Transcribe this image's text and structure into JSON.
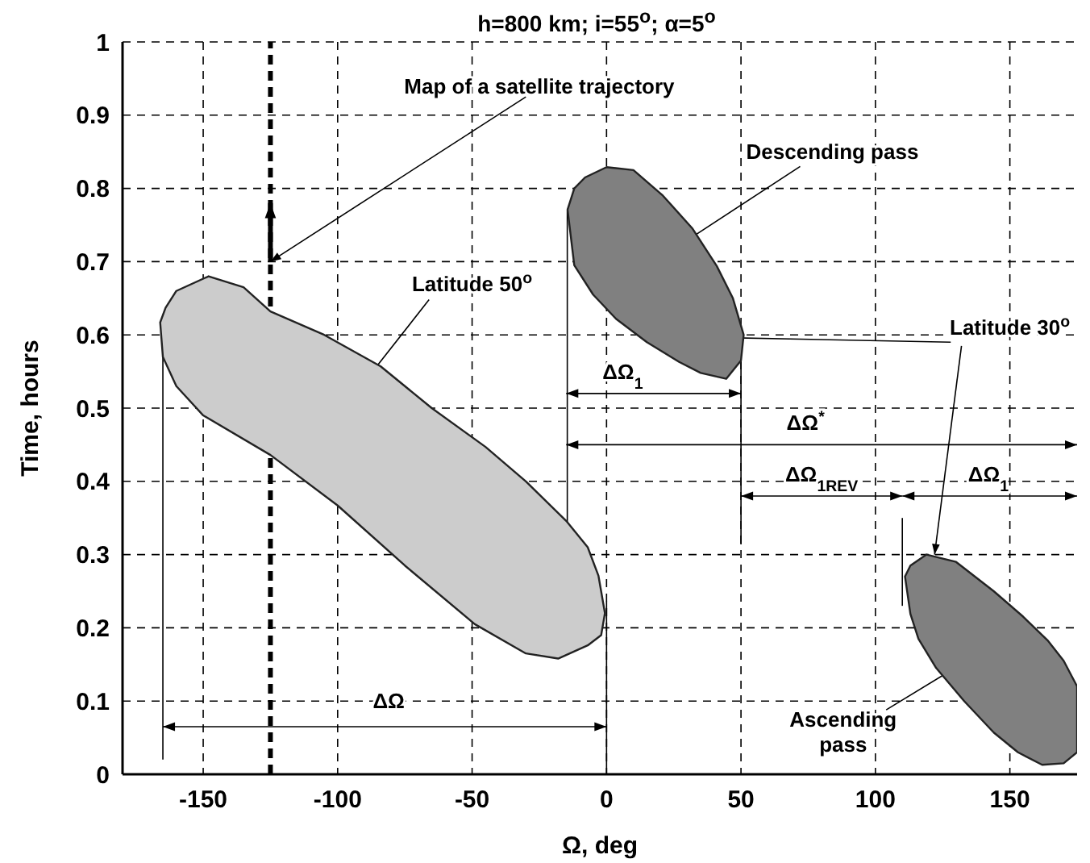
{
  "chart_data": {
    "type": "area",
    "title": "h=800 km; i=55$^{o}$; α=5$^{o}$",
    "xlabel": "Ω, deg",
    "ylabel": "Time, hours",
    "xlim": [
      -180,
      175
    ],
    "xticks": [
      -150,
      -100,
      -50,
      0,
      50,
      100,
      150
    ],
    "ylim": [
      0,
      1
    ],
    "yticks": [
      0,
      0.1,
      0.2,
      0.3,
      0.4,
      0.5,
      0.6,
      0.7,
      0.8,
      0.9,
      1
    ],
    "grid": true,
    "marker": "none",
    "series": [
      {
        "color": "#cccccc",
        "x": [
          -166,
          -164,
          -160,
          -148,
          -135,
          -125,
          -105,
          -84,
          -65,
          -45,
          -30,
          -15,
          -7,
          -3,
          -0.6,
          -2,
          -7,
          -18,
          -30,
          -49,
          -75,
          -100,
          -125,
          -150,
          -160,
          -165
        ],
        "values": [
          0.617,
          0.637,
          0.66,
          0.68,
          0.665,
          0.632,
          0.6,
          0.557,
          0.5,
          0.447,
          0.4,
          0.346,
          0.31,
          0.271,
          0.22,
          0.19,
          0.176,
          0.158,
          0.165,
          0.205,
          0.285,
          0.367,
          0.436,
          0.49,
          0.53,
          0.57
        ]
      },
      {
        "color": "#808080",
        "x": [
          -14.5,
          -12,
          -8,
          0,
          10,
          21,
          32,
          41,
          47,
          51,
          50,
          44.5,
          35,
          27,
          15,
          3.5,
          -5,
          -12
        ],
        "values": [
          0.771,
          0.8,
          0.815,
          0.829,
          0.825,
          0.79,
          0.745,
          0.694,
          0.65,
          0.6,
          0.565,
          0.54,
          0.548,
          0.563,
          0.59,
          0.622,
          0.655,
          0.695
        ]
      },
      {
        "color": "#808080",
        "x": [
          111,
          113,
          119,
          130,
          144,
          155,
          164,
          170,
          175,
          175,
          170,
          162,
          153,
          144,
          133,
          122.6,
          116,
          113
        ],
        "values": [
          0.27,
          0.285,
          0.3,
          0.29,
          0.25,
          0.215,
          0.183,
          0.155,
          0.12,
          0.03,
          0.015,
          0.013,
          0.03,
          0.057,
          0.1,
          0.145,
          0.185,
          0.219
        ]
      }
    ],
    "ref_lines": [
      {
        "axis": "x",
        "value": -125,
        "color": "#000000",
        "line_style": "dashed"
      }
    ],
    "annotations": [
      {
        "text": "Map of a satellite trajectory",
        "x": -125,
        "y": 0.7
      },
      "Descending pass",
      "Latitude 50$^{o}$",
      {
        "text": "Latitude 30$^{o}$",
        "x": 122,
        "y": 0.3
      },
      "Ascending\npass",
      "ΔΩ",
      "ΔΩ$_{1}$",
      "ΔΩ$^{*}$",
      "ΔΩ$_{1REV}$",
      "ΔΩ$_{1}$"
    ]
  }
}
